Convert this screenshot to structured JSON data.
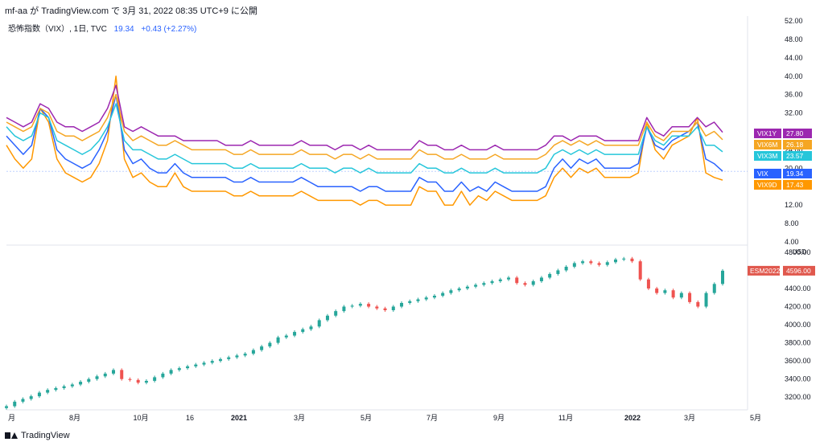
{
  "header": {
    "text": "mf-aa が TradingView.com で 3月 31, 2022 08:35 UTC+9 に公開"
  },
  "legend": {
    "symbol": "恐怖指数（VIX）, 1日, TVC",
    "value": "19.34",
    "change": "+0.43 (+2.27%)"
  },
  "footer": {
    "brand": "TradingView"
  },
  "colors": {
    "VIX1Y": "#9c27b0",
    "VIX6M": "#f5a623",
    "VIX3M": "#26c6da",
    "VIX": "#2962ff",
    "VIX9D": "#ff9800",
    "ESM2022": "#e0584d",
    "candle_up": "#26a69a",
    "candle_down": "#ef5350"
  },
  "chart_data": [
    {
      "type": "line",
      "name": "upper-pane",
      "title": "恐怖指数（VIX）, 1日, TVC",
      "x_tick_labels": [
        "月",
        "8月",
        "10月",
        "16",
        "2021",
        "3月",
        "5月",
        "7月",
        "9月",
        "11月",
        "2022",
        "3月",
        "5月"
      ],
      "y_tick_labels": [
        "52.00",
        "48.00",
        "44.00",
        "40.00",
        "36.00",
        "32.00",
        "28.00",
        "24.00",
        "20.00",
        "16.00",
        "12.00",
        "8.00",
        "4.00"
      ],
      "ylim": [
        4,
        52
      ],
      "series": [
        {
          "name": "VIX1Y",
          "last": "27.80",
          "values": [
            31,
            30,
            29,
            30,
            34,
            33,
            30,
            29,
            29,
            28,
            29,
            30,
            33,
            38,
            29,
            28,
            29,
            28,
            27,
            27,
            27,
            26,
            26,
            26,
            26,
            26,
            25,
            25,
            25,
            26,
            25,
            25,
            25,
            25,
            25,
            26,
            25,
            25,
            25,
            24,
            25,
            25,
            24,
            25,
            24,
            24,
            24,
            24,
            24,
            26,
            25,
            25,
            24,
            24,
            25,
            24,
            24,
            24,
            25,
            24,
            24,
            24,
            24,
            24,
            25,
            27,
            27,
            26,
            27,
            27,
            27,
            26,
            26,
            26,
            26,
            26,
            31,
            28,
            27,
            29,
            29,
            29,
            31,
            29,
            30,
            27.8
          ]
        },
        {
          "name": "VIX6M",
          "last": "26.18",
          "values": [
            30,
            29,
            28,
            29,
            33,
            32,
            28,
            27,
            27,
            26,
            27,
            28,
            31,
            36,
            28,
            26,
            27,
            26,
            25,
            25,
            26,
            25,
            24,
            24,
            24,
            24,
            24,
            23,
            23,
            24,
            23,
            23,
            23,
            23,
            23,
            24,
            23,
            23,
            23,
            22,
            23,
            23,
            22,
            23,
            22,
            22,
            22,
            22,
            22,
            24,
            23,
            23,
            22,
            22,
            23,
            22,
            22,
            22,
            23,
            22,
            22,
            22,
            22,
            22,
            23,
            25,
            26,
            25,
            26,
            25,
            26,
            25,
            25,
            25,
            25,
            25,
            30,
            27,
            26,
            28,
            28,
            28,
            30,
            27,
            28,
            26.18
          ]
        },
        {
          "name": "VIX3M",
          "last": "23.57",
          "values": [
            29,
            27,
            26,
            27,
            32,
            31,
            26,
            25,
            24,
            23,
            24,
            26,
            29,
            34,
            26,
            24,
            24,
            23,
            22,
            22,
            23,
            22,
            21,
            21,
            21,
            21,
            21,
            20,
            20,
            21,
            20,
            20,
            20,
            20,
            20,
            21,
            20,
            20,
            20,
            19,
            20,
            20,
            19,
            20,
            19,
            19,
            19,
            19,
            19,
            21,
            20,
            20,
            19,
            19,
            20,
            19,
            19,
            19,
            20,
            19,
            19,
            19,
            19,
            19,
            20,
            23,
            24,
            23,
            24,
            23,
            24,
            23,
            23,
            23,
            23,
            23,
            29,
            26,
            25,
            27,
            27,
            27,
            29,
            25,
            25,
            23.57
          ]
        },
        {
          "name": "VIX",
          "last": "19.34",
          "values": [
            27,
            25,
            23,
            25,
            33,
            31,
            24,
            22,
            21,
            20,
            21,
            24,
            28,
            36,
            24,
            21,
            22,
            20,
            19,
            19,
            21,
            19,
            18,
            18,
            18,
            18,
            18,
            17,
            17,
            18,
            17,
            17,
            17,
            17,
            17,
            18,
            17,
            16,
            16,
            16,
            16,
            16,
            15,
            16,
            16,
            15,
            15,
            15,
            15,
            18,
            17,
            17,
            15,
            15,
            17,
            15,
            16,
            15,
            17,
            16,
            15,
            15,
            15,
            15,
            16,
            20,
            22,
            20,
            22,
            21,
            22,
            20,
            20,
            20,
            20,
            21,
            29,
            25,
            24,
            26,
            27,
            28,
            30,
            22,
            21,
            19.34
          ]
        },
        {
          "name": "VIX9D",
          "last": "17.43",
          "values": [
            25,
            22,
            20,
            22,
            33,
            30,
            22,
            19,
            18,
            17,
            18,
            21,
            26,
            40,
            22,
            18,
            19,
            17,
            16,
            16,
            19,
            16,
            15,
            15,
            15,
            15,
            15,
            14,
            14,
            15,
            14,
            14,
            14,
            14,
            14,
            15,
            14,
            13,
            13,
            13,
            13,
            13,
            12,
            13,
            13,
            12,
            12,
            12,
            12,
            16,
            15,
            15,
            12,
            12,
            15,
            12,
            14,
            13,
            15,
            14,
            13,
            13,
            13,
            13,
            14,
            18,
            20,
            18,
            20,
            19,
            20,
            18,
            18,
            18,
            18,
            19,
            30,
            24,
            22,
            25,
            26,
            27,
            31,
            19,
            18,
            17.43
          ]
        }
      ]
    },
    {
      "type": "candlestick",
      "name": "lower-pane",
      "series_name": "ESM2022",
      "last": "4596.00",
      "unit": "USD",
      "y_tick_labels": [
        "4800.00",
        "4600.00",
        "4400.00",
        "4200.00",
        "4000.00",
        "3800.00",
        "3600.00",
        "3400.00",
        "3200.00"
      ],
      "ylim": [
        3060,
        4870
      ],
      "closes": [
        3100,
        3150,
        3180,
        3210,
        3250,
        3280,
        3300,
        3320,
        3340,
        3370,
        3400,
        3430,
        3460,
        3500,
        3400,
        3390,
        3360,
        3380,
        3420,
        3460,
        3500,
        3520,
        3540,
        3560,
        3580,
        3600,
        3620,
        3640,
        3660,
        3680,
        3720,
        3760,
        3800,
        3860,
        3880,
        3920,
        3950,
        3980,
        4050,
        4100,
        4150,
        4200,
        4210,
        4230,
        4200,
        4180,
        4160,
        4200,
        4240,
        4260,
        4280,
        4300,
        4320,
        4350,
        4380,
        4400,
        4420,
        4440,
        4460,
        4480,
        4500,
        4520,
        4460,
        4440,
        4480,
        4520,
        4560,
        4600,
        4640,
        4680,
        4700,
        4680,
        4660,
        4690,
        4720,
        4730,
        4700,
        4500,
        4400,
        4350,
        4380,
        4300,
        4350,
        4250,
        4200,
        4350,
        4450,
        4596
      ]
    }
  ]
}
